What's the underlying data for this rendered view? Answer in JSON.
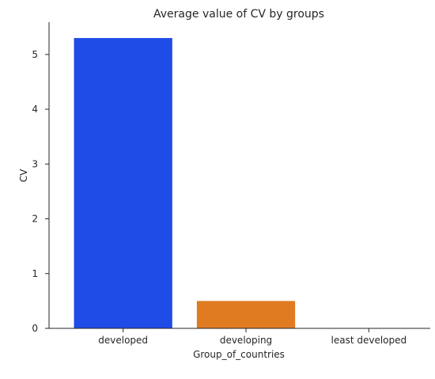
{
  "chart_data": {
    "type": "bar",
    "title": "Average value of CV by groups",
    "xlabel": "Group_of_countries",
    "ylabel": "CV",
    "categories": [
      "developed",
      "developing",
      "least developed"
    ],
    "values": [
      5.3,
      0.5,
      0.0
    ],
    "colors": [
      "#1f4be6",
      "#e07b22",
      "#2a9d3a"
    ],
    "ylim": [
      0,
      5.6
    ],
    "yticks": [
      "0",
      "1",
      "2",
      "3",
      "4",
      "5"
    ],
    "grid": false,
    "legend": "none"
  }
}
